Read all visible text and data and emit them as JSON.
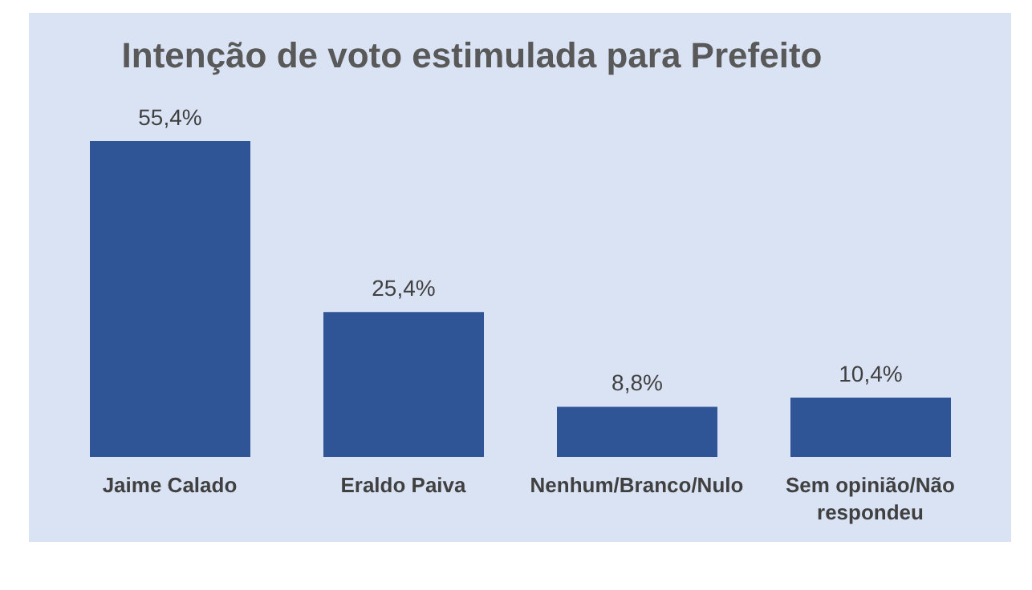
{
  "chart_data": {
    "type": "bar",
    "title": "Intenção de voto estimulada para Prefeito",
    "categories": [
      "Jaime Calado",
      "Eraldo Paiva",
      "Nenhum/Branco/Nulo",
      "Sem opinião/Não respondeu"
    ],
    "values": [
      55.4,
      25.4,
      8.8,
      10.4
    ],
    "value_labels": [
      "55,4%",
      "25,4%",
      "8,8%",
      "10,4%"
    ],
    "color": "#2f5597"
  }
}
